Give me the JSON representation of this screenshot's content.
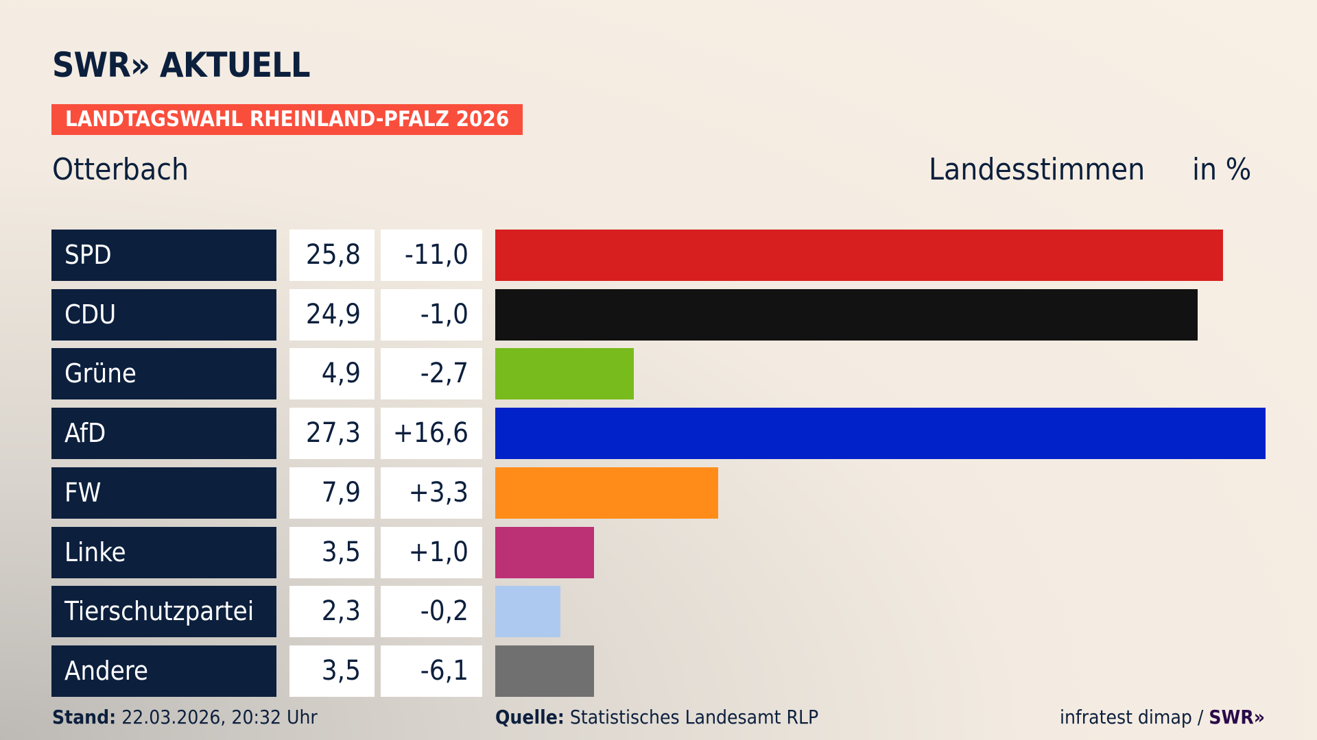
{
  "header": {
    "logo": "SWR» AKTUELL",
    "banner": "LANDTAGSWAHL RHEINLAND-PFALZ 2026",
    "region": "Otterbach",
    "measure": "Landesstimmen",
    "unit": "in %"
  },
  "chart_data": {
    "type": "bar",
    "orientation": "horizontal",
    "categories": [
      "SPD",
      "CDU",
      "Grüne",
      "AfD",
      "FW",
      "Linke",
      "Tierschutzpartei",
      "Andere"
    ],
    "values": [
      25.8,
      24.9,
      4.9,
      27.3,
      7.9,
      3.5,
      2.3,
      3.5
    ],
    "value_labels": [
      "25,8",
      "24,9",
      "4,9",
      "27,3",
      "7,9",
      "3,5",
      "2,3",
      "3,5"
    ],
    "changes": [
      "-11,0",
      "-1,0",
      "-2,7",
      "+16,6",
      "+3,3",
      "+1,0",
      "-0,2",
      "-6,1"
    ],
    "colors": [
      "#d81f20",
      "#121212",
      "#78bb1c",
      "#0022c8",
      "#ff8c19",
      "#bc3075",
      "#aec9ef",
      "#707070"
    ],
    "xlim": [
      0,
      27.3
    ],
    "grid": false
  },
  "footer": {
    "stand_label": "Stand:",
    "stand_value": "22.03.2026, 20:32 Uhr",
    "source_label": "Quelle:",
    "source_value": "Statistisches Landesamt RLP",
    "credit": "infratest dimap / ",
    "credit_logo": "SWR»"
  }
}
